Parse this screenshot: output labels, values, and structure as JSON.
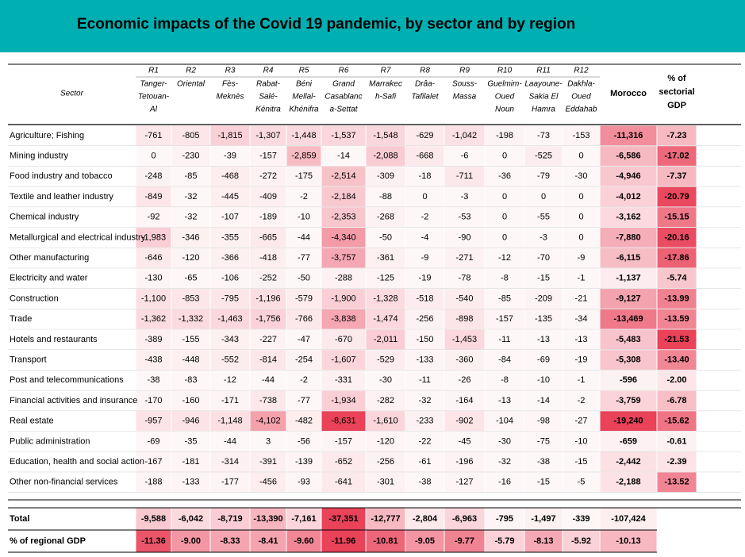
{
  "title": "Economic impacts of the Covid 19 pandemic, by sector and by region",
  "header": {
    "sector_label": "Sector",
    "regions": [
      {
        "code": "R1",
        "name": [
          "Tanger-",
          "Tetouan-",
          "Al"
        ]
      },
      {
        "code": "R2",
        "name": [
          "Oriental"
        ]
      },
      {
        "code": "R3",
        "name": [
          "Fès-",
          "Meknès"
        ]
      },
      {
        "code": "R4",
        "name": [
          "Rabat-",
          "Salé-",
          "Kénitra"
        ]
      },
      {
        "code": "R5",
        "name": [
          "Béni",
          "Mellal-",
          "Khénifra"
        ]
      },
      {
        "code": "R6",
        "name": [
          "Grand",
          "Casablanc",
          "a-Settat"
        ]
      },
      {
        "code": "R7",
        "name": [
          "Marrakec",
          "h-Safi"
        ]
      },
      {
        "code": "R8",
        "name": [
          "Drâa-",
          "Tafilalet"
        ]
      },
      {
        "code": "R9",
        "name": [
          "Souss-",
          "Massa"
        ]
      },
      {
        "code": "R10",
        "name": [
          "Guelmim-",
          "Oued",
          "Noun"
        ]
      },
      {
        "code": "R11",
        "name": [
          "Laayoune-",
          "Sakia El",
          "Hamra"
        ]
      },
      {
        "code": "R12",
        "name": [
          "Dakhla-",
          "Oued",
          "Eddahab"
        ]
      }
    ],
    "morocco_label": "Morocco",
    "pct_label": [
      "% of",
      "sectorial",
      "GDP"
    ]
  },
  "colors": {
    "banner": "#00afb2",
    "heat": "#e83a52"
  },
  "chart_data": {
    "type": "heatmap",
    "title": "Economic impacts of the Covid 19 pandemic, by sector and by region",
    "columns": [
      "R1",
      "R2",
      "R3",
      "R4",
      "R5",
      "R6",
      "R7",
      "R8",
      "R9",
      "R10",
      "R11",
      "R12",
      "Morocco",
      "% of sectorial GDP"
    ],
    "rows": [
      {
        "sector": "Agriculture; Fishing",
        "values": [
          "-761",
          "-805",
          "-1,815",
          "-1,307",
          "-1,448",
          "-1,537",
          "-1,548",
          "-629",
          "-1,042",
          "-198",
          "-73",
          "-153"
        ],
        "morocco": "-11,316",
        "pct": "-7.23"
      },
      {
        "sector": "Mining industry",
        "values": [
          "0",
          "-230",
          "-39",
          "-157",
          "-2,859",
          "-14",
          "-2,088",
          "-668",
          "-6",
          "0",
          "-525",
          "0"
        ],
        "morocco": "-6,586",
        "pct": "-17.02"
      },
      {
        "sector": "Food industry and tobacco",
        "values": [
          "-248",
          "-85",
          "-468",
          "-272",
          "-175",
          "-2,514",
          "-309",
          "-18",
          "-711",
          "-36",
          "-79",
          "-30"
        ],
        "morocco": "-4,946",
        "pct": "-7.37"
      },
      {
        "sector": "Textile and leather industry",
        "values": [
          "-849",
          "-32",
          "-445",
          "-409",
          "-2",
          "-2,184",
          "-88",
          "0",
          "-3",
          "0",
          "0",
          "0"
        ],
        "morocco": "-4,012",
        "pct": "-20.79"
      },
      {
        "sector": "Chemical industry",
        "values": [
          "-92",
          "-32",
          "-107",
          "-189",
          "-10",
          "-2,353",
          "-268",
          "-2",
          "-53",
          "0",
          "-55",
          "0"
        ],
        "morocco": "-3,162",
        "pct": "-15.15"
      },
      {
        "sector": "Metallurgical and electrical industry",
        "values": [
          "-1,983",
          "-346",
          "-355",
          "-665",
          "-44",
          "-4,340",
          "-50",
          "-4",
          "-90",
          "0",
          "-3",
          "0"
        ],
        "morocco": "-7,880",
        "pct": "-20.16"
      },
      {
        "sector": "Other manufacturing",
        "values": [
          "-646",
          "-120",
          "-366",
          "-418",
          "-77",
          "-3,757",
          "-361",
          "-9",
          "-271",
          "-12",
          "-70",
          "-9"
        ],
        "morocco": "-6,115",
        "pct": "-17.86"
      },
      {
        "sector": "Electricity and water",
        "values": [
          "-130",
          "-65",
          "-106",
          "-252",
          "-50",
          "-288",
          "-125",
          "-19",
          "-78",
          "-8",
          "-15",
          "-1"
        ],
        "morocco": "-1,137",
        "pct": "-5.74"
      },
      {
        "sector": "Construction",
        "values": [
          "-1,100",
          "-853",
          "-795",
          "-1,196",
          "-579",
          "-1,900",
          "-1,328",
          "-518",
          "-540",
          "-85",
          "-209",
          "-21"
        ],
        "morocco": "-9,127",
        "pct": "-13.99"
      },
      {
        "sector": "Trade",
        "values": [
          "-1,362",
          "-1,332",
          "-1,463",
          "-1,756",
          "-766",
          "-3,838",
          "-1,474",
          "-256",
          "-898",
          "-157",
          "-135",
          "-34"
        ],
        "morocco": "-13,469",
        "pct": "-13.59"
      },
      {
        "sector": "Hotels and restaurants",
        "values": [
          "-389",
          "-155",
          "-343",
          "-227",
          "-47",
          "-670",
          "-2,011",
          "-150",
          "-1,453",
          "-11",
          "-13",
          "-13"
        ],
        "morocco": "-5,483",
        "pct": "-21.53"
      },
      {
        "sector": "Transport",
        "values": [
          "-438",
          "-448",
          "-552",
          "-814",
          "-254",
          "-1,607",
          "-529",
          "-133",
          "-360",
          "-84",
          "-69",
          "-19"
        ],
        "morocco": "-5,308",
        "pct": "-13.40"
      },
      {
        "sector": "Post and telecommunications",
        "values": [
          "-38",
          "-83",
          "-12",
          "-44",
          "-2",
          "-331",
          "-30",
          "-11",
          "-26",
          "-8",
          "-10",
          "-1"
        ],
        "morocco": "-596",
        "pct": "-2.00"
      },
      {
        "sector": "Financial activities and insurance",
        "values": [
          "-170",
          "-160",
          "-171",
          "-738",
          "-77",
          "-1,934",
          "-282",
          "-32",
          "-164",
          "-13",
          "-14",
          "-2"
        ],
        "morocco": "-3,759",
        "pct": "-6.78"
      },
      {
        "sector": "Real estate",
        "values": [
          "-957",
          "-946",
          "-1,148",
          "-4,102",
          "-482",
          "-8,631",
          "-1,610",
          "-233",
          "-902",
          "-104",
          "-98",
          "-27"
        ],
        "morocco": "-19,240",
        "pct": "-15.62"
      },
      {
        "sector": "Public administration",
        "values": [
          "-69",
          "-35",
          "-44",
          "3",
          "-56",
          "-157",
          "-120",
          "-22",
          "-45",
          "-30",
          "-75",
          "-10"
        ],
        "morocco": "-659",
        "pct": "-0.61"
      },
      {
        "sector": "Education, health and social action",
        "values": [
          "-167",
          "-181",
          "-314",
          "-391",
          "-139",
          "-652",
          "-256",
          "-61",
          "-196",
          "-32",
          "-38",
          "-15"
        ],
        "morocco": "-2,442",
        "pct": "-2.39"
      },
      {
        "sector": "Other non-financial services",
        "values": [
          "-188",
          "-133",
          "-177",
          "-456",
          "-93",
          "-641",
          "-301",
          "-38",
          "-127",
          "-16",
          "-15",
          "-5"
        ],
        "morocco": "-2,188",
        "pct": "-13.52"
      }
    ],
    "total": {
      "label": "Total",
      "values": [
        "-9,588",
        "-6,042",
        "-8,719",
        "-13,390",
        "-7,161",
        "-37,351",
        "-12,777",
        "-2,804",
        "-6,963",
        "-795",
        "-1,497",
        "-339"
      ],
      "morocco": "-107,424"
    },
    "pct_regional": {
      "label": "% of regional GDP",
      "values": [
        "-11.36",
        "-9.00",
        "-8.33",
        "-8.41",
        "-9.60",
        "-11.96",
        "-10.81",
        "-9.05",
        "-9.77",
        "-5.79",
        "-8.13",
        "-5.92"
      ],
      "morocco": "-10.13"
    }
  }
}
